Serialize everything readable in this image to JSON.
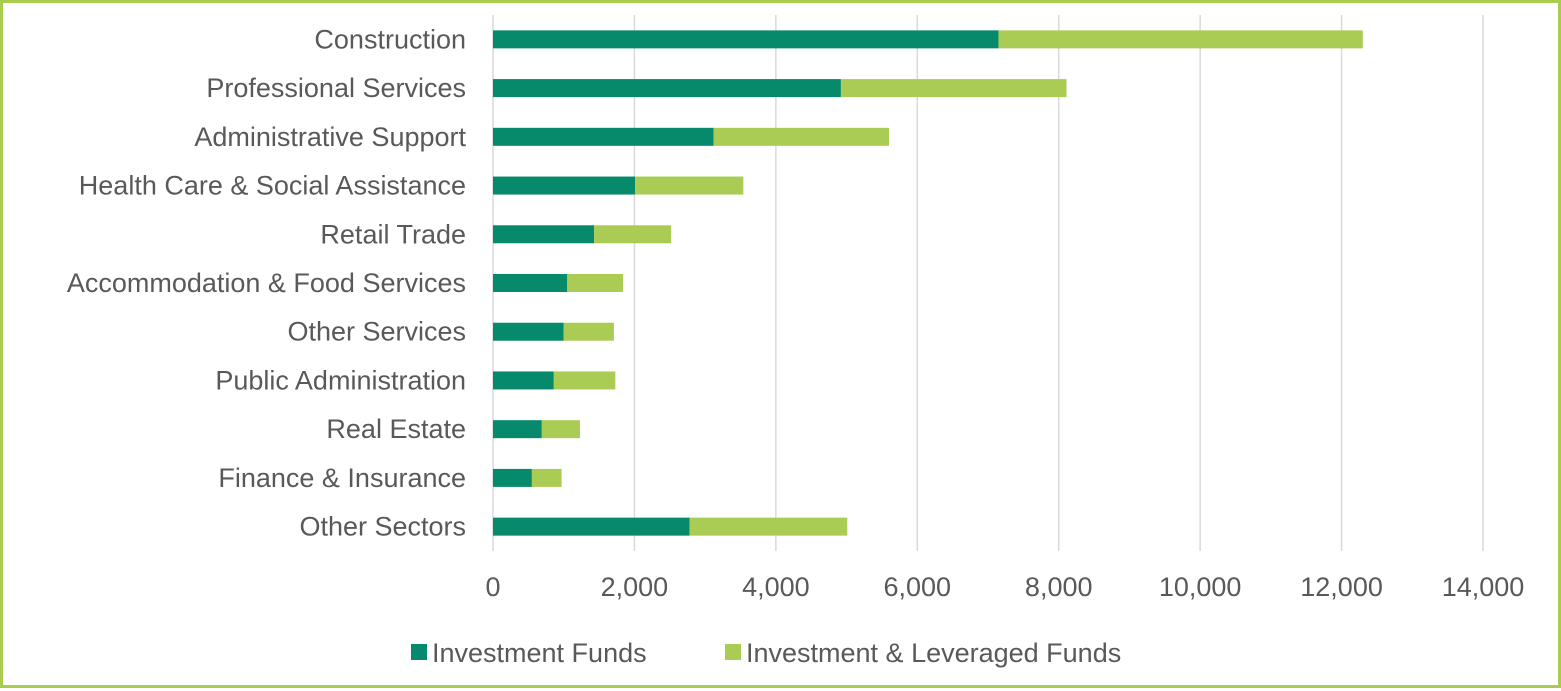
{
  "chart_data": {
    "type": "bar",
    "orientation": "horizontal",
    "stacked": true,
    "title": "",
    "xlabel": "",
    "ylabel": "",
    "categories": [
      "Construction",
      "Professional Services",
      "Administrative Support",
      "Health Care & Social Assistance",
      "Retail Trade",
      "Accommodation & Food Services",
      "Other Services",
      "Public Administration",
      "Real Estate",
      "Finance & Insurance",
      "Other Sectors"
    ],
    "series": [
      {
        "name": "Investment Funds",
        "color": "#078a6b",
        "values": [
          7150,
          4920,
          3120,
          2010,
          1430,
          1050,
          1000,
          860,
          690,
          550,
          2780
        ]
      },
      {
        "name": "Investment & Leveraged Funds",
        "color": "#aacc55",
        "values": [
          5150,
          3190,
          2480,
          1530,
          1090,
          790,
          710,
          870,
          540,
          420,
          2230
        ]
      }
    ],
    "xlim": [
      0,
      14000
    ],
    "xticks": [
      0,
      2000,
      4000,
      6000,
      8000,
      10000,
      12000,
      14000
    ],
    "xtick_labels": [
      "0",
      "2,000",
      "4,000",
      "6,000",
      "8,000",
      "10,000",
      "12,000",
      "14,000"
    ],
    "grid": "vertical",
    "legend_position": "bottom",
    "border_color": "#a9cc4f",
    "gridline_color": "#d9d9d9",
    "text_color": "#595959"
  }
}
